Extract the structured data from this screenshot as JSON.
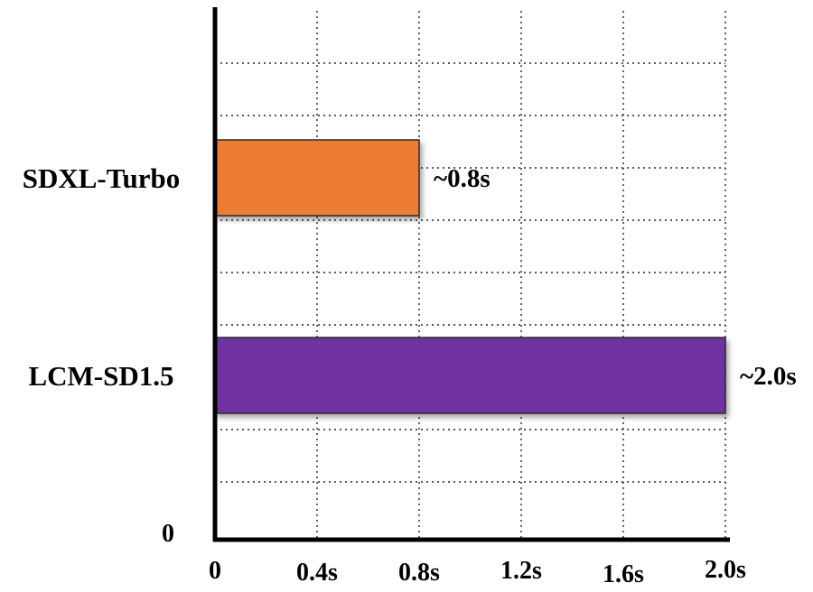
{
  "chart_data": {
    "type": "bar",
    "orientation": "horizontal",
    "categories": [
      "SDXL-Turbo",
      "LCM-SD1.5"
    ],
    "values": [
      0.8,
      2.0
    ],
    "data_labels": [
      "~0.8s",
      "~2.0s"
    ],
    "bar_colors": [
      "#ED7D31",
      "#7030A0"
    ],
    "x_ticks": [
      0,
      0.4,
      0.8,
      1.2,
      1.6,
      2.0
    ],
    "x_tick_labels": [
      "0",
      "0.4s",
      "0.8s",
      "1.2s",
      "1.6s",
      "2.0s"
    ],
    "y_origin_label": "0",
    "xlim": [
      0,
      2.0
    ],
    "xlabel": "",
    "ylabel": "",
    "title": "",
    "grid": true,
    "legend": "none"
  }
}
